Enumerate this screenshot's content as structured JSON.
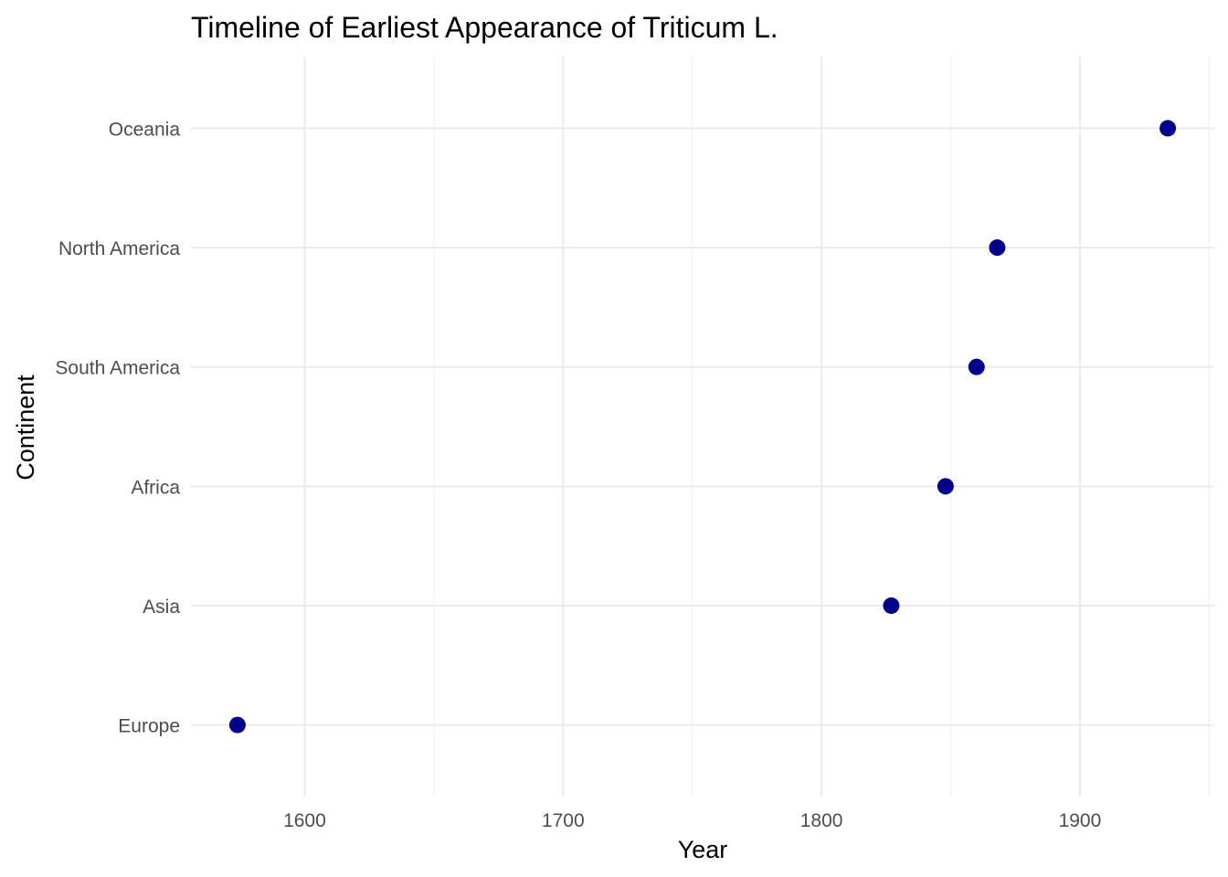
{
  "chart_data": {
    "type": "scatter",
    "title": "Timeline of Earliest Appearance of Triticum L.",
    "xlabel": "Year",
    "ylabel": "Continent",
    "xlim": [
      1556,
      1952
    ],
    "x_ticks": [
      1600,
      1700,
      1800,
      1900
    ],
    "x_tick_labels": [
      "1600",
      "1700",
      "1800",
      "1900"
    ],
    "categories": [
      "Europe",
      "Asia",
      "Africa",
      "South America",
      "North America",
      "Oceania"
    ],
    "points": [
      {
        "category": "Europe",
        "x": 1574
      },
      {
        "category": "Asia",
        "x": 1827
      },
      {
        "category": "Africa",
        "x": 1848
      },
      {
        "category": "South America",
        "x": 1860
      },
      {
        "category": "North America",
        "x": 1868
      },
      {
        "category": "Oceania",
        "x": 1934
      }
    ],
    "point_color": "#00008B",
    "grid": true,
    "legend": "none"
  }
}
